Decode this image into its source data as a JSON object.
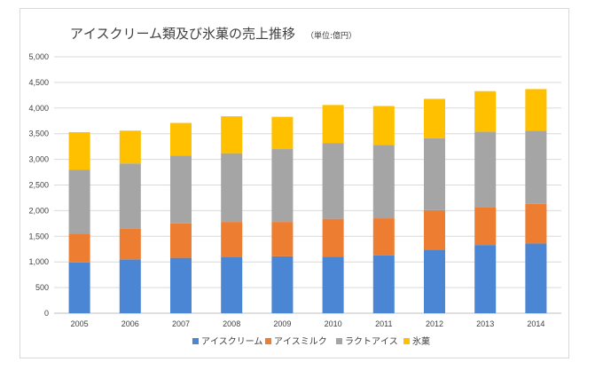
{
  "chart_data": {
    "type": "bar",
    "stacked": true,
    "title": "アイスクリーム類及び氷菓の売上推移",
    "subtitle": "（単位:億円）",
    "xlabel": "",
    "ylabel": "",
    "ylim": [
      0,
      5000
    ],
    "yticks": [
      0,
      500,
      1000,
      1500,
      2000,
      2500,
      3000,
      3500,
      4000,
      4500,
      5000
    ],
    "ytick_labels": [
      "0",
      "500",
      "1,000",
      "1,500",
      "2,000",
      "2,500",
      "3,000",
      "3,500",
      "4,000",
      "4,500",
      "5,000"
    ],
    "grid": true,
    "legend_position": "bottom",
    "categories": [
      "2005",
      "2006",
      "2007",
      "2008",
      "2009",
      "2010",
      "2011",
      "2012",
      "2013",
      "2014"
    ],
    "series": [
      {
        "name": "アイスクリーム",
        "color": "#4a86d4",
        "values": [
          990,
          1050,
          1080,
          1090,
          1110,
          1100,
          1130,
          1240,
          1330,
          1360
        ]
      },
      {
        "name": "アイスミルク",
        "color": "#ed7d31",
        "values": [
          560,
          600,
          670,
          690,
          670,
          740,
          720,
          770,
          740,
          770
        ]
      },
      {
        "name": "ラクトアイス",
        "color": "#a5a5a5",
        "values": [
          1250,
          1270,
          1320,
          1340,
          1420,
          1480,
          1430,
          1400,
          1470,
          1430
        ]
      },
      {
        "name": "氷菓",
        "color": "#ffc000",
        "values": [
          730,
          640,
          640,
          720,
          630,
          740,
          760,
          770,
          790,
          810
        ]
      }
    ]
  }
}
